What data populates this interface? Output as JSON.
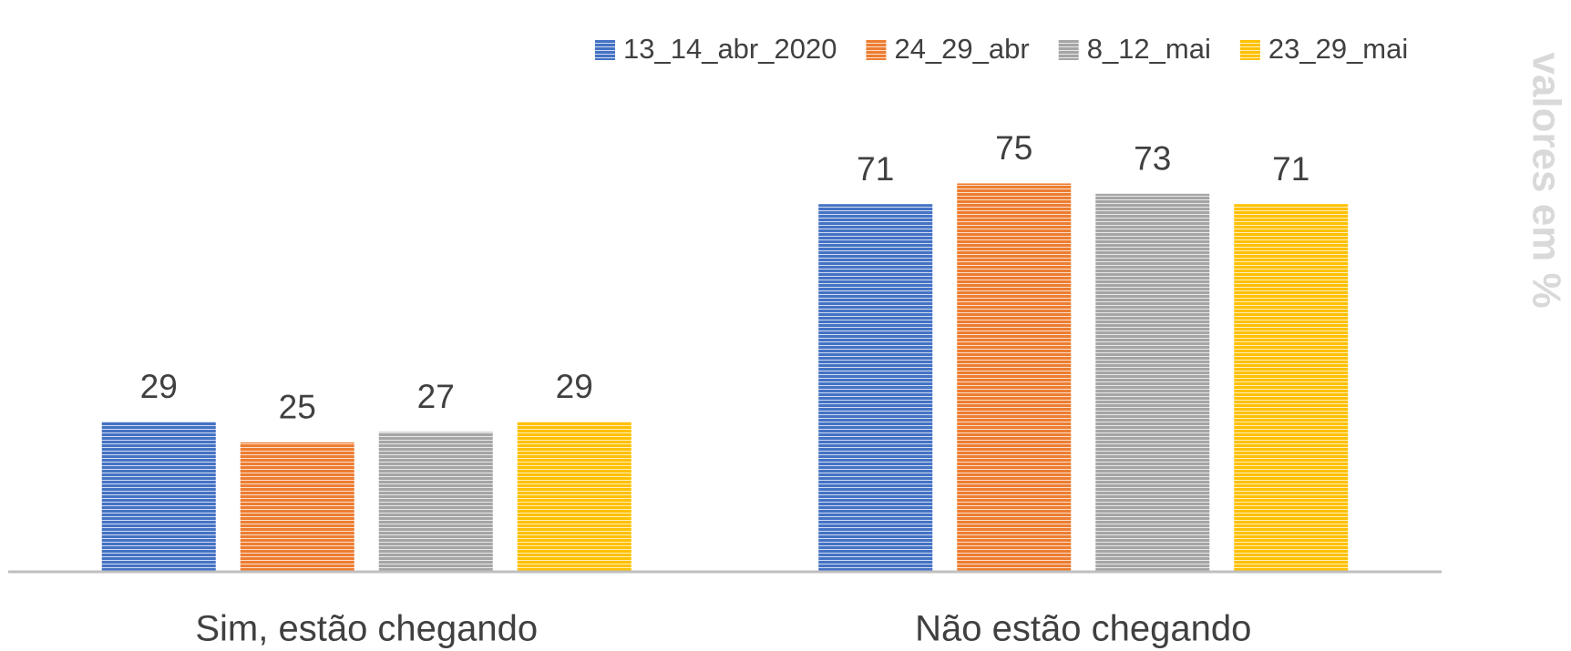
{
  "chart_data": {
    "type": "bar",
    "y_label": "valores em %",
    "categories": [
      "Sim, estão chegando",
      "Não estão chegando"
    ],
    "series": [
      {
        "name": "13_14_abr_2020",
        "color": "#4472c4",
        "values": [
          29,
          71
        ]
      },
      {
        "name": "24_29_abr",
        "color": "#ed7d31",
        "values": [
          25,
          75
        ]
      },
      {
        "name": "8_12_mai",
        "color": "#a5a5a5",
        "values": [
          27,
          73
        ]
      },
      {
        "name": "23_29_mai",
        "color": "#ffc000",
        "values": [
          29,
          71
        ]
      }
    ],
    "ylim": [
      0,
      80
    ],
    "legend": "top-right",
    "grid": false
  }
}
